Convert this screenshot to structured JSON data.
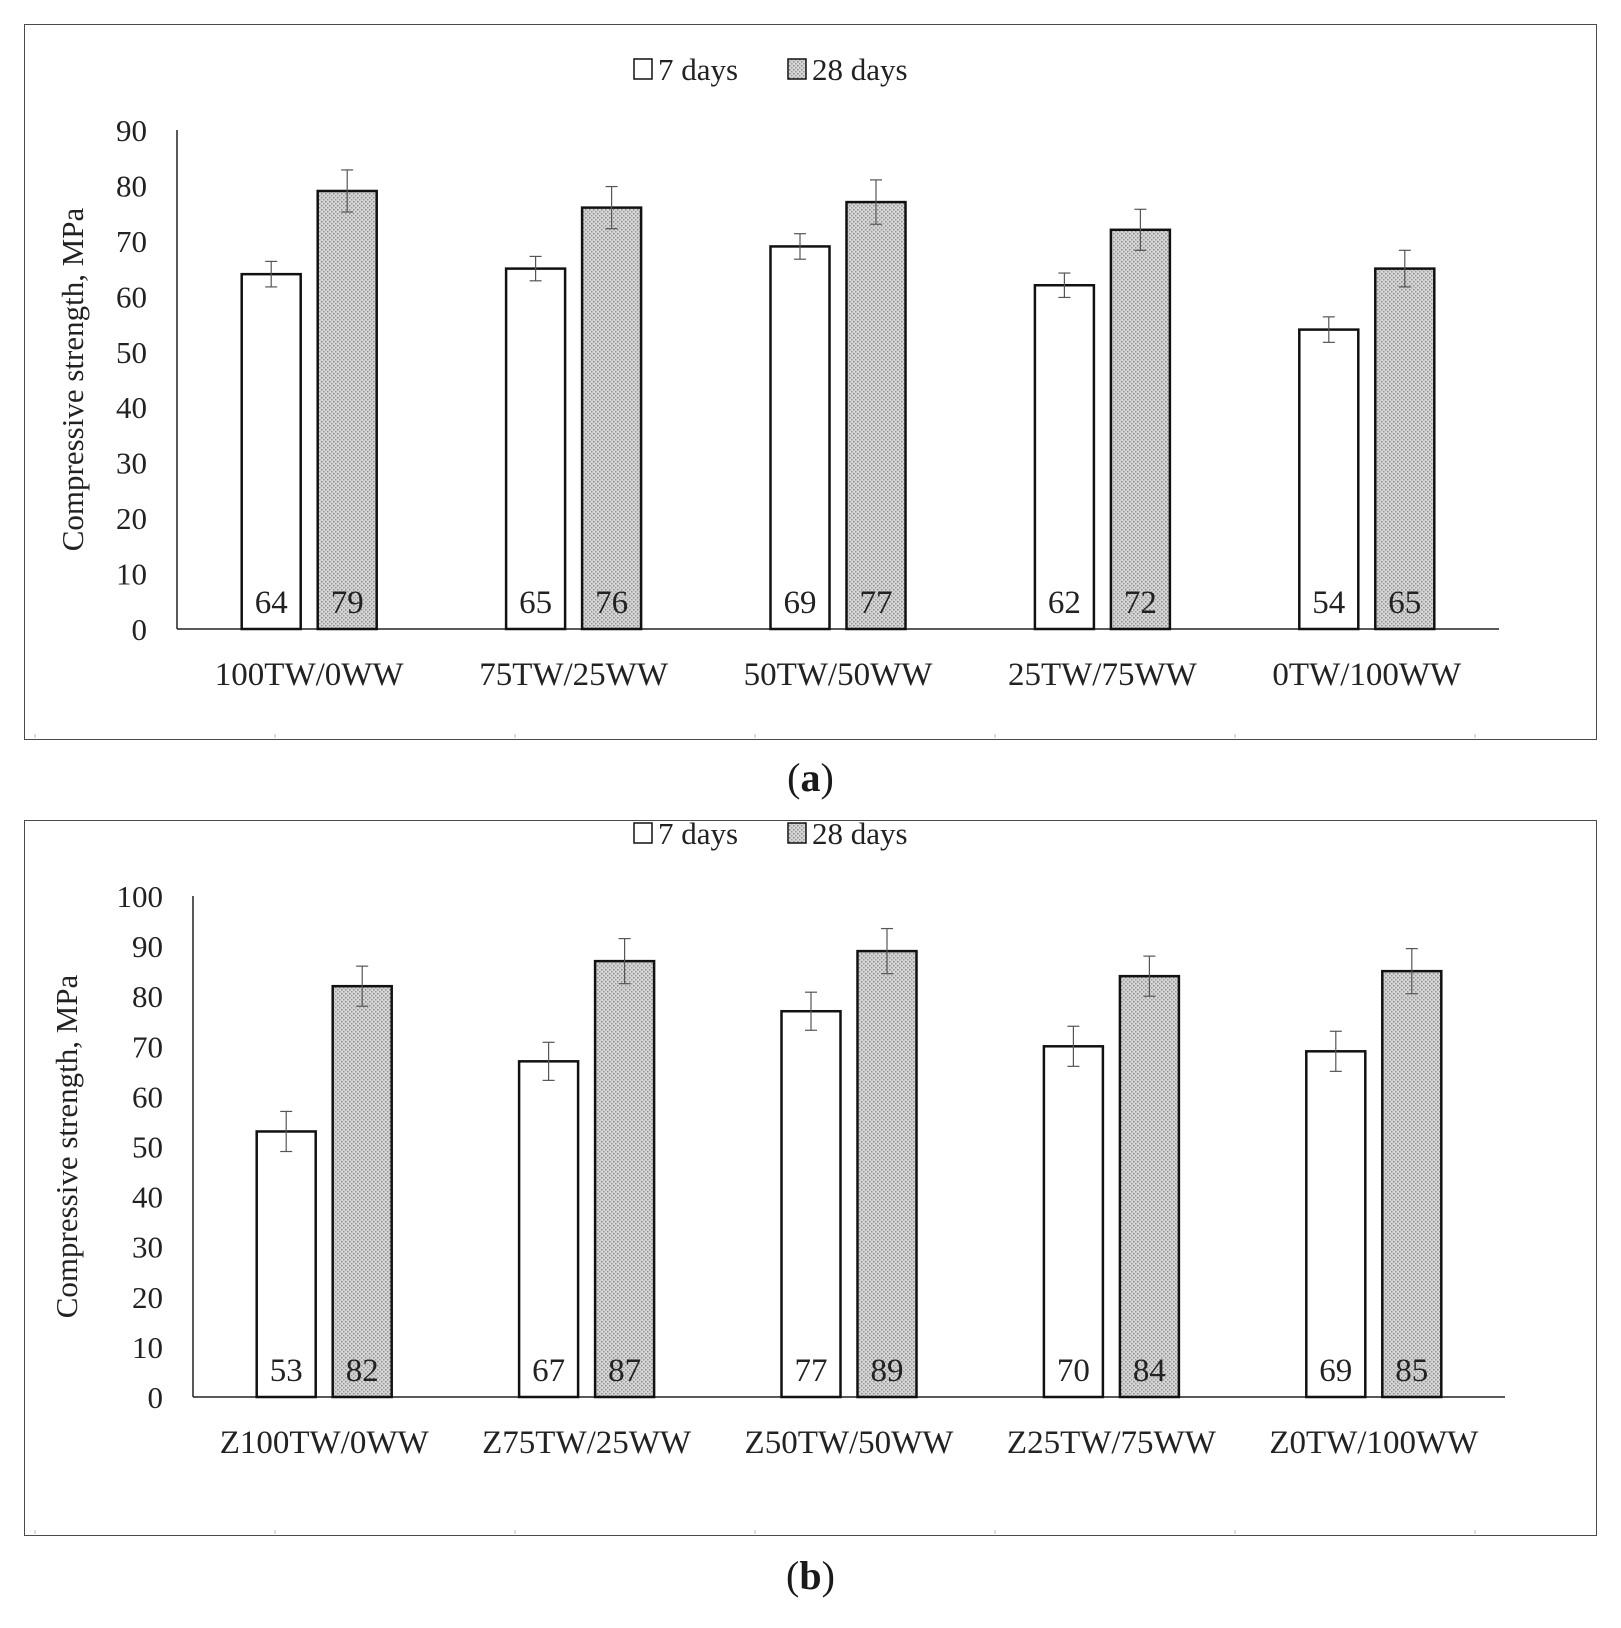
{
  "captions": [
    {
      "label": "a"
    },
    {
      "label": "b"
    }
  ],
  "colors": {
    "bar7_fill": "#ffffff",
    "bar28_fill": "#d6d6d6",
    "bar_stroke": "#111111",
    "axis": "#222222",
    "error_bar": "#555555"
  },
  "chart_data": [
    {
      "type": "bar",
      "title": "",
      "xlabel": "",
      "ylabel": "Compressive strength, MPa",
      "ylim": [
        0,
        90
      ],
      "yticks": [
        0,
        10,
        20,
        30,
        40,
        50,
        60,
        70,
        80,
        90
      ],
      "grid": false,
      "legend": "top-center",
      "categories": [
        "100TW/0WW",
        "75TW/25WW",
        "50TW/50WW",
        "25TW/75WW",
        "0TW/100WW"
      ],
      "series": [
        {
          "name": "7 days",
          "values": [
            64,
            65,
            69,
            62,
            54
          ],
          "error": [
            2.3,
            2.2,
            2.3,
            2.2,
            2.3
          ]
        },
        {
          "name": "28 days",
          "values": [
            79,
            76,
            77,
            72,
            65
          ],
          "error": [
            3.8,
            3.8,
            4.0,
            3.7,
            3.3
          ]
        }
      ]
    },
    {
      "type": "bar",
      "title": "",
      "xlabel": "",
      "ylabel": "Compressive strength, MPa",
      "ylim": [
        0,
        100
      ],
      "yticks": [
        0,
        10,
        20,
        30,
        40,
        50,
        60,
        70,
        80,
        90,
        100
      ],
      "grid": false,
      "legend": "top-center",
      "categories": [
        "Z100TW/0WW",
        "Z75TW/25WW",
        "Z50TW/50WW",
        "Z25TW/75WW",
        "Z0TW/100WW"
      ],
      "series": [
        {
          "name": "7 days",
          "values": [
            53,
            67,
            77,
            70,
            69
          ],
          "error": [
            4.0,
            3.8,
            3.8,
            4.0,
            4.0
          ]
        },
        {
          "name": "28 days",
          "values": [
            82,
            87,
            89,
            84,
            85
          ],
          "error": [
            4.0,
            4.5,
            4.5,
            4.0,
            4.5
          ]
        }
      ]
    }
  ]
}
